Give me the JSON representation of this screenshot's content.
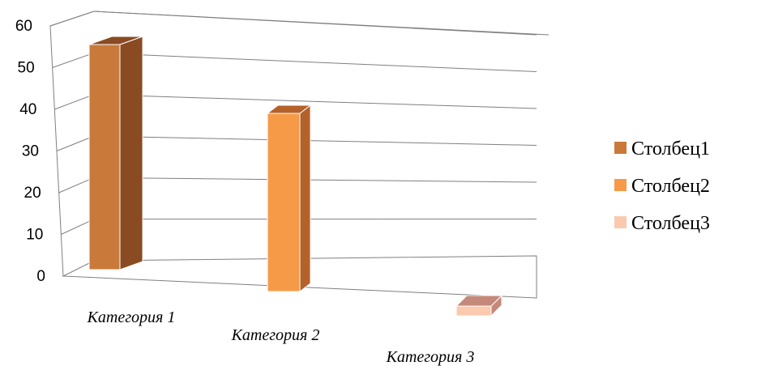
{
  "chart_data": {
    "type": "bar",
    "title": "",
    "xlabel": "",
    "ylabel": "",
    "ylim": [
      0,
      60
    ],
    "yticks": [
      0,
      10,
      20,
      30,
      40,
      50,
      60
    ],
    "categories": [
      "Категория 1",
      "Категория 2",
      "Категория 3"
    ],
    "series": [
      {
        "name": "Столбец1",
        "values": [
          54,
          null,
          null
        ],
        "color": "#c97a3a",
        "side_color": "#8a4b22"
      },
      {
        "name": "Столбец2",
        "values": [
          null,
          37,
          null
        ],
        "color": "#f79a48",
        "side_color": "#b4612a"
      },
      {
        "name": "Столбец3",
        "values": [
          null,
          null,
          2
        ],
        "color": "#fbc9ae",
        "side_color": "#c4897a"
      }
    ],
    "grid": true,
    "legend_position": "right",
    "style": "3d-clustered-column"
  }
}
